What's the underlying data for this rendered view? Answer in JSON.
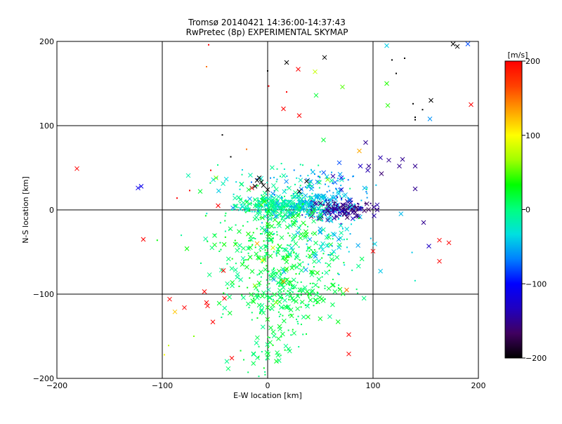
{
  "chart_data": {
    "type": "scatter",
    "title": "Tromsø 20140421 14:36:00-14:37:43",
    "subtitle": "RwPretec (8p) EXPERIMENTAL SKYMAP",
    "xlabel": "E-W location [km]",
    "ylabel": "N-S location [km]",
    "xlim": [
      -200,
      200
    ],
    "ylim": [
      -200,
      200
    ],
    "xticks": [
      -200,
      -100,
      0,
      100,
      200
    ],
    "yticks": [
      -200,
      -100,
      0,
      100,
      200
    ],
    "xtick_labels": [
      "−200",
      "−100",
      "0",
      "100",
      "200"
    ],
    "ytick_labels": [
      "−200",
      "−100",
      "0",
      "100",
      "200"
    ],
    "grid": true,
    "colorbar": {
      "label": "[m/s]",
      "range": [
        -200,
        200
      ],
      "ticks": [
        200,
        100,
        0,
        -100,
        -200
      ],
      "tick_labels": [
        "200",
        "100",
        "0",
        "−100",
        "−200"
      ],
      "colormap": [
        "#000000",
        "#400060",
        "#2000c0",
        "#0000ff",
        "#0080ff",
        "#00e0e0",
        "#00ff80",
        "#00ff00",
        "#a0ff00",
        "#ffff00",
        "#ffa000",
        "#ff4000",
        "#ff0000"
      ]
    },
    "series": [
      {
        "marker": "x",
        "points": [
          [
            -181,
            49,
            200
          ],
          [
            -123,
            26,
            -110
          ],
          [
            -120,
            28,
            -110
          ],
          [
            -118,
            -35,
            200
          ],
          [
            -93,
            -106,
            200
          ],
          [
            -88,
            -121,
            120
          ],
          [
            -79,
            -116,
            200
          ],
          [
            -64,
            22,
            20
          ],
          [
            -60,
            -97,
            200
          ],
          [
            -58,
            -110,
            200
          ],
          [
            -57,
            -114,
            200
          ],
          [
            -52,
            -133,
            200
          ],
          [
            -49,
            38,
            60
          ],
          [
            -47,
            5,
            200
          ],
          [
            -42,
            -72,
            200
          ],
          [
            -41,
            -105,
            200
          ],
          [
            -34,
            -176,
            200
          ],
          [
            -31,
            14,
            -10
          ],
          [
            -18,
            24,
            20
          ],
          [
            -15,
            26,
            200
          ],
          [
            -12,
            28,
            -200
          ],
          [
            -10,
            35,
            -200
          ],
          [
            -8,
            38,
            -200
          ],
          [
            -6,
            33,
            -200
          ],
          [
            -4,
            29,
            -200
          ],
          [
            0,
            24,
            -200
          ],
          [
            -20,
            9,
            20
          ],
          [
            -6,
            6,
            50
          ],
          [
            -3,
            10,
            40
          ],
          [
            -10,
            -40,
            130
          ],
          [
            -5,
            -60,
            100
          ],
          [
            5,
            -45,
            80
          ],
          [
            18,
            -70,
            40
          ],
          [
            8,
            -110,
            60
          ],
          [
            15,
            -85,
            140
          ],
          [
            -12,
            -90,
            60
          ],
          [
            3,
            -140,
            20
          ],
          [
            18,
            175,
            -200
          ],
          [
            15,
            120,
            200
          ],
          [
            29,
            167,
            200
          ],
          [
            30,
            112,
            200
          ],
          [
            45,
            164,
            80
          ],
          [
            46,
            136,
            20
          ],
          [
            53,
            83,
            20
          ],
          [
            54,
            181,
            -200
          ],
          [
            57,
            36,
            60
          ],
          [
            62,
            40,
            -140
          ],
          [
            70,
            38,
            -110
          ],
          [
            71,
            6,
            -160
          ],
          [
            70,
            24,
            -130
          ],
          [
            71,
            146,
            50
          ],
          [
            75,
            -95,
            150
          ],
          [
            77,
            -148,
            200
          ],
          [
            77,
            -171,
            200
          ],
          [
            87,
            70,
            130
          ],
          [
            88,
            52,
            -130
          ],
          [
            93,
            80,
            -150
          ],
          [
            95,
            47,
            -140
          ],
          [
            96,
            52,
            -150
          ],
          [
            101,
            -7,
            -140
          ],
          [
            104,
            0,
            -150
          ],
          [
            104,
            6,
            -140
          ],
          [
            107,
            62,
            -140
          ],
          [
            108,
            43,
            -160
          ],
          [
            113,
            150,
            40
          ],
          [
            113,
            195,
            -40
          ],
          [
            114,
            124,
            40
          ],
          [
            115,
            59,
            -150
          ],
          [
            125,
            52,
            -150
          ],
          [
            128,
            60,
            -150
          ],
          [
            140,
            52,
            -150
          ],
          [
            140,
            25,
            -150
          ],
          [
            148,
            -15,
            -150
          ],
          [
            153,
            -43,
            -130
          ],
          [
            154,
            108,
            -60
          ],
          [
            163,
            -36,
            200
          ],
          [
            163,
            -61,
            200
          ],
          [
            172,
            -39,
            200
          ],
          [
            176,
            197,
            -200
          ],
          [
            180,
            194,
            -200
          ],
          [
            190,
            197,
            -80
          ],
          [
            193,
            125,
            200
          ],
          [
            155,
            130,
            -200
          ],
          [
            100,
            -49,
            200
          ],
          [
            37,
            34,
            -200
          ],
          [
            30,
            22,
            -200
          ],
          [
            68,
            56,
            -80
          ],
          [
            44,
            0,
            20
          ]
        ]
      },
      {
        "marker": "dot",
        "points": [
          [
            -58,
            170,
            150
          ],
          [
            -56,
            196,
            200
          ],
          [
            0,
            165,
            -200
          ],
          [
            1,
            147,
            200
          ],
          [
            18,
            140,
            200
          ],
          [
            -43,
            89,
            -200
          ],
          [
            -35,
            63,
            -200
          ],
          [
            -20,
            72,
            150
          ],
          [
            130,
            180,
            -200
          ],
          [
            122,
            162,
            -200
          ],
          [
            118,
            178,
            -200
          ],
          [
            147,
            119,
            -200
          ],
          [
            138,
            126,
            -200
          ],
          [
            140,
            110,
            -200
          ],
          [
            140,
            107,
            -200
          ],
          [
            -70,
            -150,
            60
          ],
          [
            -94,
            -161,
            80
          ],
          [
            -98,
            -172,
            100
          ],
          [
            -86,
            14,
            200
          ],
          [
            -74,
            23,
            200
          ],
          [
            -54,
            47,
            200
          ]
        ]
      }
    ],
    "clusters": [
      {
        "cx": 10,
        "cy": 5,
        "sx": 20,
        "sy": 6,
        "n": 260,
        "vmin": -30,
        "vmax": 10
      },
      {
        "cx": 40,
        "cy": 5,
        "sx": 20,
        "sy": 8,
        "n": 140,
        "vmin": -60,
        "vmax": -30
      },
      {
        "cx": 70,
        "cy": 1,
        "sx": 15,
        "sy": 6,
        "n": 130,
        "vmin": -170,
        "vmax": -130
      },
      {
        "cx": 8,
        "cy": -40,
        "sx": 30,
        "sy": 25,
        "n": 280,
        "vmin": -10,
        "vmax": 40
      },
      {
        "cx": 20,
        "cy": -100,
        "sx": 25,
        "sy": 18,
        "n": 220,
        "vmin": -5,
        "vmax": 30
      },
      {
        "cx": 0,
        "cy": -160,
        "sx": 20,
        "sy": 20,
        "n": 60,
        "vmin": -5,
        "vmax": 30
      },
      {
        "cx": 50,
        "cy": 25,
        "sx": 25,
        "sy": 15,
        "n": 90,
        "vmin": -80,
        "vmax": -40
      },
      {
        "cx": 55,
        "cy": -30,
        "sx": 30,
        "sy": 25,
        "n": 70,
        "vmin": -60,
        "vmax": -20
      },
      {
        "cx": 15,
        "cy": 25,
        "sx": 30,
        "sy": 18,
        "n": 80,
        "vmin": -40,
        "vmax": 10
      }
    ]
  }
}
